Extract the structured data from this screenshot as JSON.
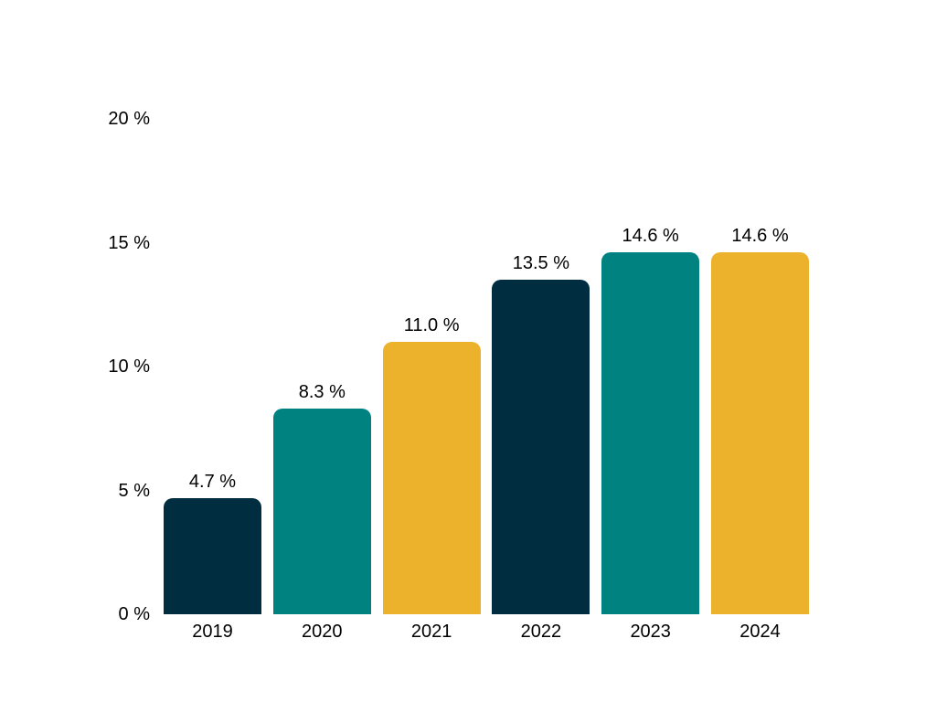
{
  "chart_data": {
    "type": "bar",
    "title": "",
    "xlabel": "",
    "ylabel": "",
    "categories": [
      "2019",
      "2020",
      "2021",
      "2022",
      "2023",
      "2024"
    ],
    "values": [
      4.7,
      8.3,
      11.0,
      13.5,
      14.6,
      14.6
    ],
    "value_labels": [
      "4.7 %",
      "8.3 %",
      "11.0 %",
      "13.5 %",
      "14.6 %",
      "14.6 %"
    ],
    "bar_colors": [
      "#012D41",
      "#008380",
      "#ECB22C",
      "#012D41",
      "#008380",
      "#ECB22C"
    ],
    "ylim": [
      0,
      20
    ],
    "yticks": [
      0,
      5,
      10,
      15,
      20
    ],
    "ytick_labels": [
      "0 %",
      "5 %",
      "10 %",
      "15 %",
      "20 %"
    ],
    "grid": false,
    "legend": "none"
  },
  "palette": {
    "navy": "#012D41",
    "teal": "#008380",
    "amber": "#ECB22C",
    "background": "#FFFFFF",
    "text": "#000000"
  }
}
